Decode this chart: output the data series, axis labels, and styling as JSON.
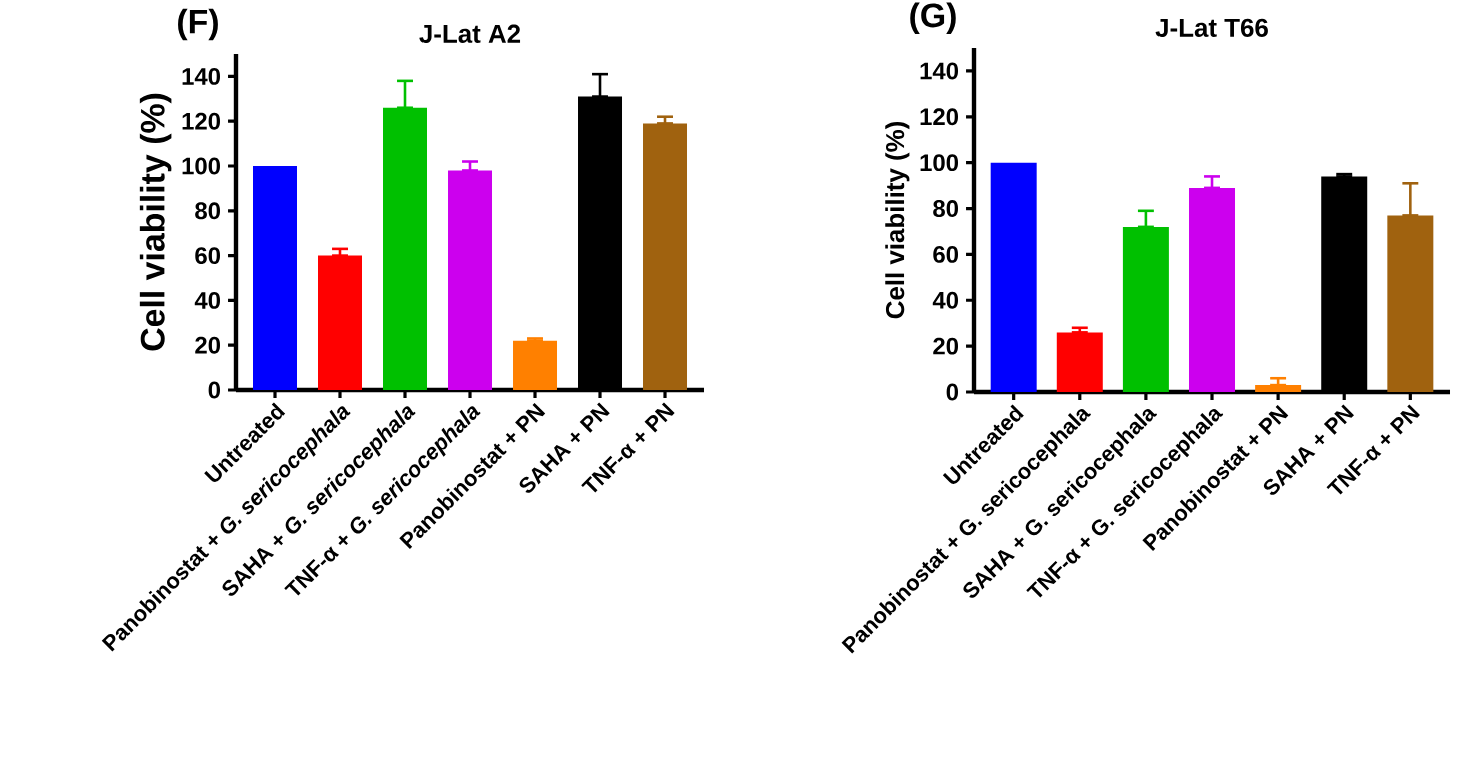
{
  "chart_data": [
    {
      "type": "bar",
      "title": "J-Lat A2",
      "ylabel": "Cell viability (%)",
      "annotations": [
        "(F)"
      ],
      "categories": [
        "Untreated",
        "Panobinostat + *G. sericocephala*",
        "SAHA + *G. sericocephala*",
        "TNF-α + *G. sericocephala*",
        "Panobinostat + PN",
        "SAHA + PN",
        "TNF-α + PN"
      ],
      "values": [
        100,
        60,
        126,
        98,
        22,
        131,
        119
      ],
      "errors": [
        null,
        [
          60,
          63
        ],
        [
          126,
          138
        ],
        [
          98,
          102
        ],
        [
          22,
          23
        ],
        [
          131,
          141
        ],
        [
          119,
          122
        ]
      ],
      "colors": [
        "#0000ff",
        "#ff0000",
        "#00c000",
        "#cc00ee",
        "#ff8000",
        "#000000",
        "#a0620f"
      ],
      "ylim": [
        0,
        150
      ],
      "yticks": [
        0,
        20,
        40,
        60,
        80,
        100,
        120,
        140
      ],
      "grid": false
    },
    {
      "type": "bar",
      "title": "J-Lat T66",
      "ylabel": "Cell viability (%)",
      "annotations": [
        "(G)"
      ],
      "categories": [
        "Untreated",
        "Panobinostat + G. sericocephala",
        "SAHA + G. sericocephala",
        "TNF-α + G. sericocephala",
        "Panobinostat + PN",
        "SAHA + PN",
        "TNF-α + PN"
      ],
      "values": [
        100,
        26,
        72,
        89,
        3,
        94,
        77
      ],
      "errors": [
        null,
        [
          26,
          28
        ],
        [
          72,
          79
        ],
        [
          89,
          94
        ],
        [
          3,
          6
        ],
        [
          94,
          95
        ],
        [
          77,
          91
        ]
      ],
      "colors": [
        "#0000ff",
        "#ff0000",
        "#00c000",
        "#cc00ee",
        "#ff8000",
        "#000000",
        "#a0620f"
      ],
      "ylim": [
        0,
        150
      ],
      "yticks": [
        0,
        20,
        40,
        60,
        80,
        100,
        120,
        140
      ],
      "grid": false
    }
  ]
}
